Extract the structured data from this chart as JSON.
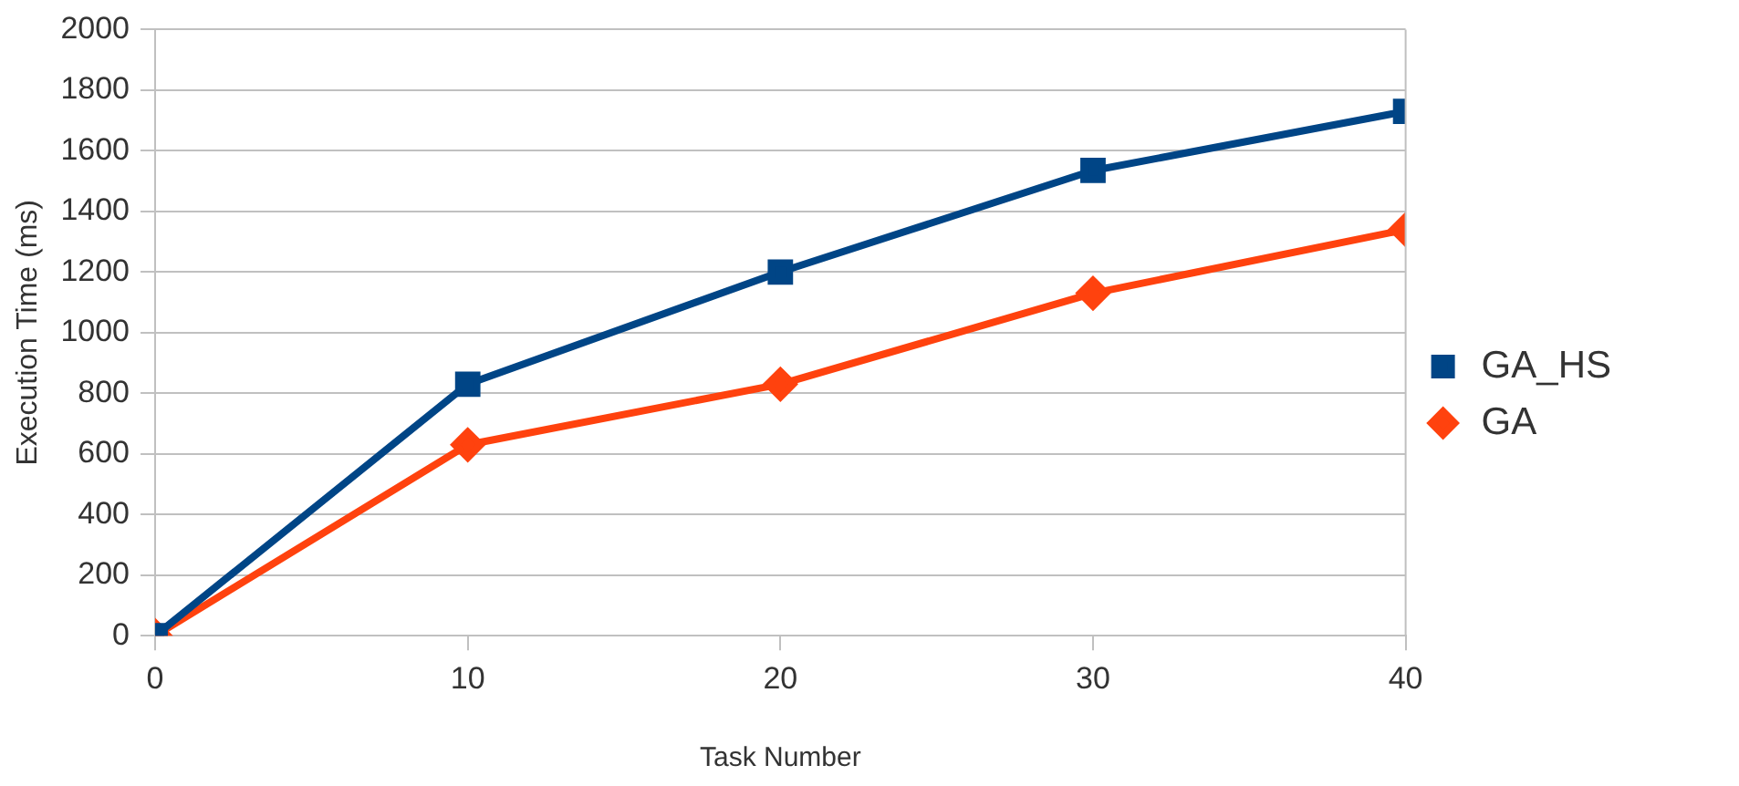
{
  "chart_data": {
    "type": "line",
    "xlabel": "Task Number",
    "ylabel": "Execution Time (ms)",
    "x": [
      0,
      10,
      20,
      30,
      40
    ],
    "series": [
      {
        "name": "GA_HS",
        "color": "#004586",
        "marker": "square",
        "values": [
          0,
          830,
          1200,
          1535,
          1730
        ]
      },
      {
        "name": "GA",
        "color": "#ff420e",
        "marker": "diamond",
        "values": [
          0,
          630,
          830,
          1130,
          1340
        ]
      }
    ],
    "xlim": [
      0,
      40
    ],
    "xticks": [
      0,
      10,
      20,
      30,
      40
    ],
    "ylim": [
      0,
      2000
    ],
    "yticks": [
      0,
      200,
      400,
      600,
      800,
      1000,
      1200,
      1400,
      1600,
      1800,
      2000
    ],
    "grid": "y",
    "legend": "right",
    "line_style": "solid"
  }
}
